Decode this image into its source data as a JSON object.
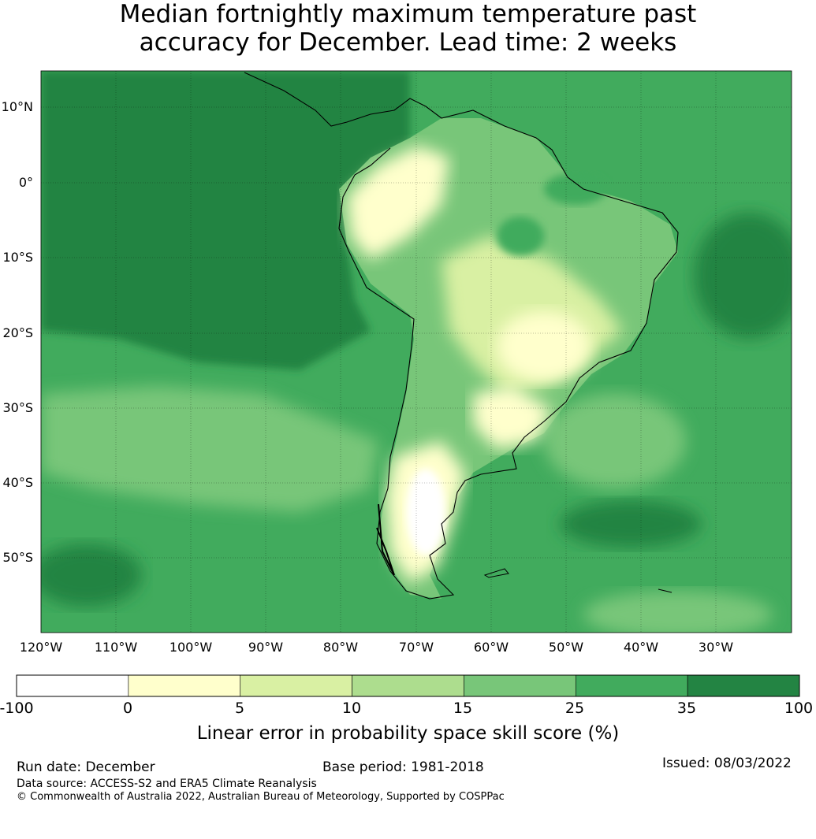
{
  "title": {
    "line1": "Median fortnightly maximum temperature past",
    "line2": "accuracy for December. Lead time: 2 weeks"
  },
  "lat_labels": [
    "10°N",
    "0°",
    "10°S",
    "20°S",
    "30°S",
    "40°S",
    "50°S"
  ],
  "lon_labels": [
    "120°W",
    "110°W",
    "100°W",
    "90°W",
    "80°W",
    "70°W",
    "60°W",
    "50°W",
    "40°W",
    "30°W"
  ],
  "colorbar": {
    "ticks": [
      "-100",
      "0",
      "5",
      "10",
      "15",
      "25",
      "35",
      "100"
    ],
    "colors": [
      "#ffffff",
      "#ffffcc",
      "#d9f0a3",
      "#addd8e",
      "#78c679",
      "#41ab5d",
      "#238443"
    ],
    "label": "Linear error in probability space skill score (%)"
  },
  "footer": {
    "run_date": "Run date: December",
    "base_period": "Base period: 1981-2018",
    "issued": "Issued: 08/03/2022",
    "data_source": "Data source: ACCESS-S2 and ERA5 Climate Reanalysis",
    "copyright": "© Commonwealth of Australia 2022, Australian Bureau of Meteorology, Supported by COSPPac"
  }
}
